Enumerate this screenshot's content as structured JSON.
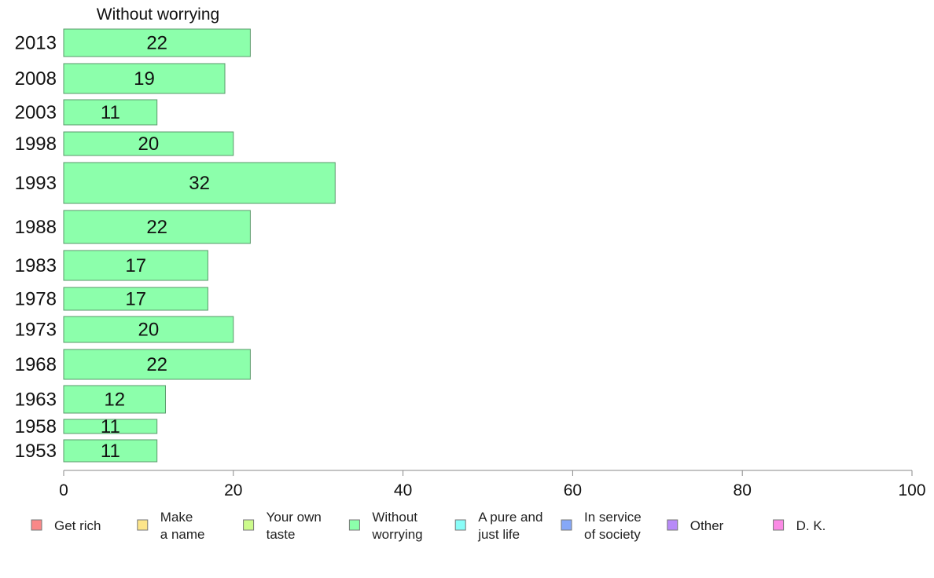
{
  "chart_data": {
    "type": "bar",
    "orientation": "horizontal",
    "title": "Without worrying",
    "categories": [
      "2013",
      "2008",
      "2003",
      "1998",
      "1993",
      "1988",
      "1983",
      "1978",
      "1973",
      "1968",
      "1963",
      "1958",
      "1953"
    ],
    "series": [
      {
        "name": "Without worrying",
        "values": [
          22,
          19,
          11,
          20,
          32,
          22,
          17,
          17,
          20,
          22,
          12,
          11,
          11
        ],
        "color": "#8cffab"
      }
    ],
    "xlim": [
      0,
      100
    ],
    "xticks": [
      0,
      20,
      40,
      60,
      80,
      100
    ],
    "grid": false,
    "legend": {
      "placement": "bottom",
      "entries": [
        {
          "label": "Get rich",
          "color": "#f98888"
        },
        {
          "label": "Make a name",
          "color": "#fde58a"
        },
        {
          "label": "Your own taste",
          "color": "#ccfb8c"
        },
        {
          "label": "Without worrying",
          "color": "#8cffab"
        },
        {
          "label": "A pure and just life",
          "color": "#89fdf8"
        },
        {
          "label": "In service of society",
          "color": "#86a8f8"
        },
        {
          "label": "Other",
          "color": "#b88af8"
        },
        {
          "label": "D. K.",
          "color": "#fb8ae5"
        }
      ]
    }
  }
}
